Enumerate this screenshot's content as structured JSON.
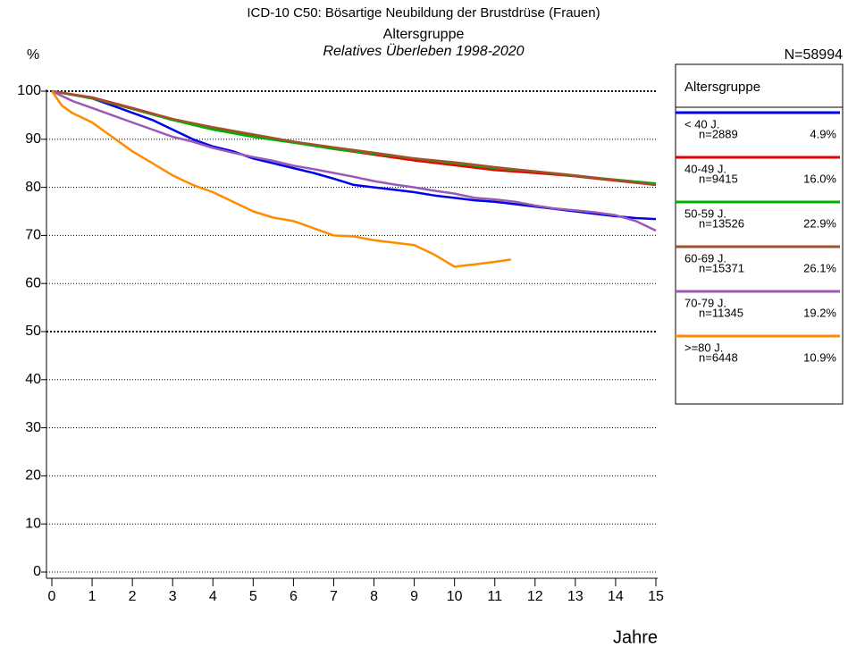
{
  "chart_data": {
    "type": "line",
    "title": "ICD-10 C50: Bösartige Neubildung der Brustdrüse (Frauen)",
    "subtitle": "Altersgruppe",
    "subtitle2": "Relatives Überleben 1998-2020",
    "total_label": "N=58994",
    "ylabel": "%",
    "xlabel": "Jahre",
    "legend_title": "Altersgruppe",
    "legend_position": "right",
    "xlim": [
      0,
      15
    ],
    "xticks": [
      0,
      1,
      2,
      3,
      4,
      5,
      6,
      7,
      8,
      9,
      10,
      11,
      12,
      13,
      14,
      15
    ],
    "ylim": [
      0,
      100
    ],
    "yticks": [
      0,
      10,
      20,
      30,
      40,
      50,
      60,
      70,
      80,
      90,
      100
    ],
    "grid": true,
    "major_gridlines": [
      50,
      100
    ],
    "series": [
      {
        "name": "< 40 J.",
        "n_text": "n=2889",
        "share_text": "4.9%",
        "color": "#0000ee",
        "x": [
          0,
          0.5,
          1,
          1.5,
          2,
          2.5,
          3,
          3.5,
          4,
          4.5,
          5,
          5.5,
          6,
          6.5,
          7,
          7.5,
          8,
          8.5,
          9,
          9.5,
          10,
          10.5,
          11,
          11.5,
          12,
          12.5,
          13,
          13.5,
          14,
          14.5,
          15
        ],
        "values": [
          100,
          99.3,
          98.5,
          97,
          95.5,
          94,
          92,
          90,
          88.5,
          87.5,
          86,
          85,
          84,
          83,
          81.8,
          80.5,
          80,
          79.5,
          79,
          78.3,
          77.8,
          77.3,
          77,
          76.5,
          76,
          75.5,
          75,
          74.5,
          74,
          73.6,
          73.4
        ]
      },
      {
        "name": "40-49 J.",
        "n_text": "n=9415",
        "share_text": "16.0%",
        "color": "#ee0000",
        "x": [
          0,
          1,
          2,
          3,
          4,
          5,
          6,
          7,
          8,
          9,
          10,
          11,
          12,
          13,
          14,
          15
        ],
        "values": [
          100,
          98.7,
          96.5,
          94.2,
          92.3,
          90.8,
          89.5,
          88,
          86.8,
          85.6,
          84.6,
          83.6,
          83,
          82.3,
          81.4,
          80.5
        ]
      },
      {
        "name": "50-59 J.",
        "n_text": "n=13526",
        "share_text": "22.9%",
        "color": "#00b000",
        "x": [
          0,
          1,
          2,
          3,
          4,
          5,
          6,
          7,
          8,
          9,
          10,
          11,
          12,
          13,
          14,
          15
        ],
        "values": [
          100,
          98.5,
          96.3,
          94,
          92,
          90.5,
          89.3,
          88,
          87,
          86,
          85,
          84,
          83.3,
          82.4,
          81.6,
          80.8
        ]
      },
      {
        "name": "60-69 J.",
        "n_text": "n=15371",
        "share_text": "26.1%",
        "color": "#a0522d",
        "x": [
          0,
          1,
          2,
          3,
          4,
          5,
          6,
          7,
          8,
          9,
          10,
          11,
          12,
          13,
          14,
          15
        ],
        "values": [
          100,
          98.6,
          96.4,
          94.2,
          92.5,
          91,
          89.5,
          88.3,
          87.2,
          86,
          85.2,
          84.2,
          83.3,
          82.5,
          81.5,
          80.5
        ]
      },
      {
        "name": "70-79 J.",
        "n_text": "n=11345",
        "share_text": "19.2%",
        "color": "#9b59b6",
        "x": [
          0,
          0.5,
          1,
          1.5,
          2,
          2.5,
          3,
          3.5,
          4,
          4.5,
          5,
          5.5,
          6,
          6.5,
          7,
          7.5,
          8,
          8.5,
          9,
          9.5,
          10,
          10.5,
          11,
          11.5,
          12,
          12.5,
          13,
          13.5,
          14,
          14.5,
          15
        ],
        "values": [
          100,
          98,
          96.5,
          95,
          93.5,
          92,
          90.5,
          89.5,
          88.2,
          87.2,
          86.3,
          85.5,
          84.5,
          83.8,
          83,
          82.2,
          81.3,
          80.6,
          80,
          79.3,
          78.7,
          77.8,
          77.5,
          77,
          76.2,
          75.6,
          75.2,
          74.8,
          74.2,
          73,
          71
        ]
      },
      {
        "name": ">=80 J.",
        "n_text": "n=6448",
        "share_text": "10.9%",
        "color": "#ff8c00",
        "x": [
          0,
          0.25,
          0.5,
          1,
          1.5,
          2,
          2.5,
          3,
          3.5,
          4,
          4.5,
          5,
          5.5,
          6,
          6.5,
          7,
          7.5,
          8,
          8.5,
          9,
          9.5,
          10,
          10.5,
          11,
          11.4
        ],
        "values": [
          100,
          97,
          95.5,
          93.5,
          90.5,
          87.5,
          85,
          82.5,
          80.5,
          79,
          77,
          75,
          73.7,
          73,
          71.5,
          70,
          69.8,
          69,
          68.5,
          68,
          66,
          63.5,
          64,
          64.5,
          65
        ]
      }
    ]
  }
}
